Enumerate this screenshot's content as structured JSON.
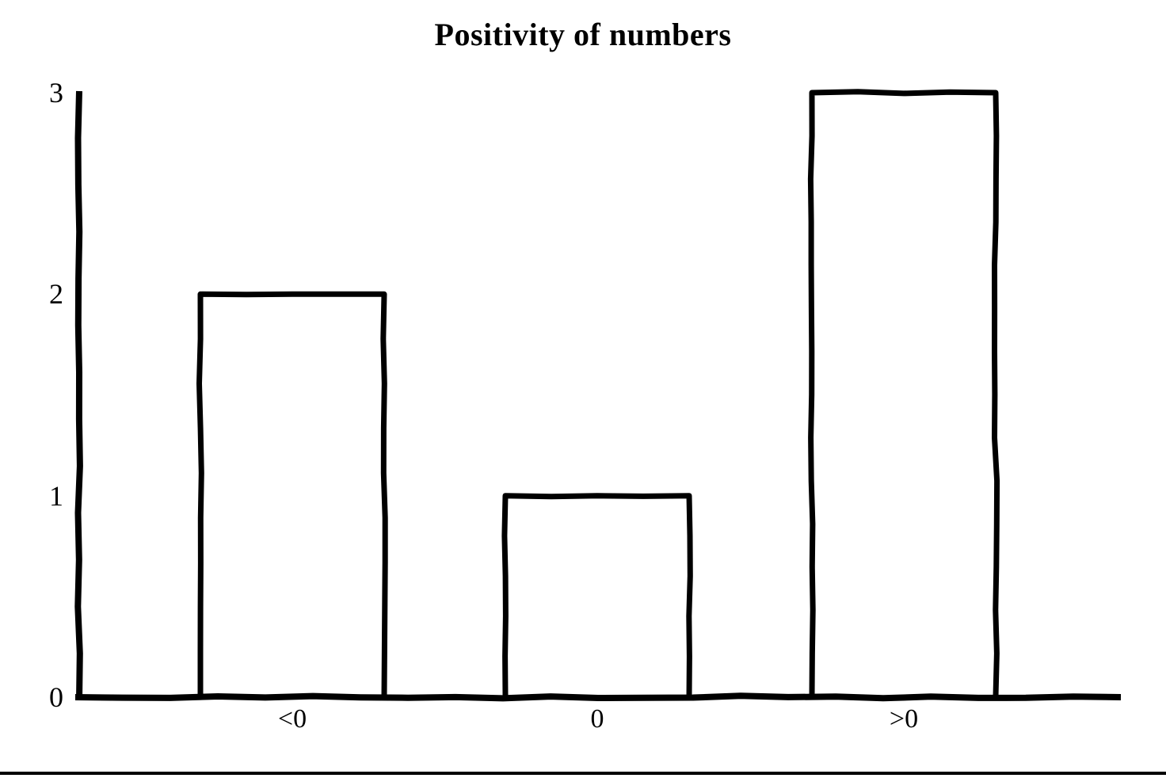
{
  "chart_data": {
    "type": "bar",
    "title": "Positivity of numbers",
    "categories": [
      "<0",
      "0",
      ">0"
    ],
    "values": [
      2,
      1,
      3
    ],
    "xlabel": "",
    "ylabel": "",
    "ylim": [
      0,
      3
    ],
    "yticks": [
      0,
      1,
      2,
      3
    ],
    "grid": false,
    "legend": false,
    "style": "hand-drawn",
    "colors": {
      "ink": "#000000",
      "background": "#ffffff",
      "bar_fill": "#ffffff"
    }
  },
  "page": {
    "bottom_rule_color": "#000000"
  }
}
